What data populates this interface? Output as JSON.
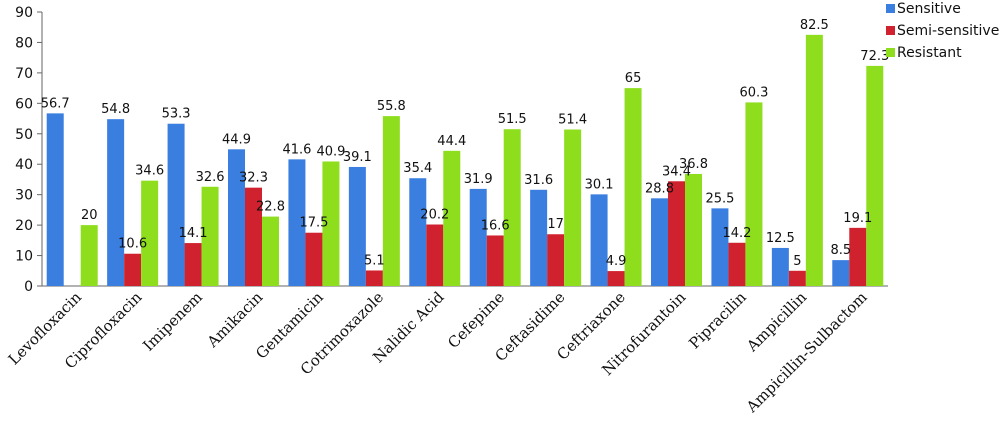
{
  "chart_data": {
    "type": "bar",
    "title": "",
    "xlabel": "",
    "ylabel": "",
    "ylim": [
      0,
      90
    ],
    "yticks": [
      0,
      10,
      20,
      30,
      40,
      50,
      60,
      70,
      80,
      90
    ],
    "grid": false,
    "legend_position": "top-right",
    "categories": [
      "Levofloxacin",
      "Ciprofloxacin",
      "Imipenem",
      "Amikacin",
      "Gentamicin",
      "Cotrimoxazole",
      "Nalidic Acid",
      "Cefepime",
      "Ceftasidime",
      "Ceftriaxone",
      "Nitrofurantoin",
      "Pipracilin",
      "Ampicillin",
      "Ampicillin-Sulbactom"
    ],
    "series": [
      {
        "name": "Sensitive",
        "color": "#3a7ee0",
        "values": [
          56.7,
          54.8,
          53.3,
          44.9,
          41.6,
          39.1,
          35.4,
          31.9,
          31.6,
          30.1,
          28.8,
          25.5,
          12.5,
          8.5
        ]
      },
      {
        "name": "Semi-sensitive",
        "color": "#d0222e",
        "values": [
          null,
          10.6,
          14.1,
          32.3,
          17.5,
          5.1,
          20.2,
          16.6,
          17,
          4.9,
          34.4,
          14.2,
          5,
          19.1
        ]
      },
      {
        "name": "Resistant",
        "color": "#8ede1e",
        "values": [
          20,
          34.6,
          32.6,
          22.8,
          40.9,
          55.8,
          44.4,
          51.5,
          51.4,
          65,
          36.8,
          60.3,
          82.5,
          72.3
        ]
      }
    ]
  }
}
